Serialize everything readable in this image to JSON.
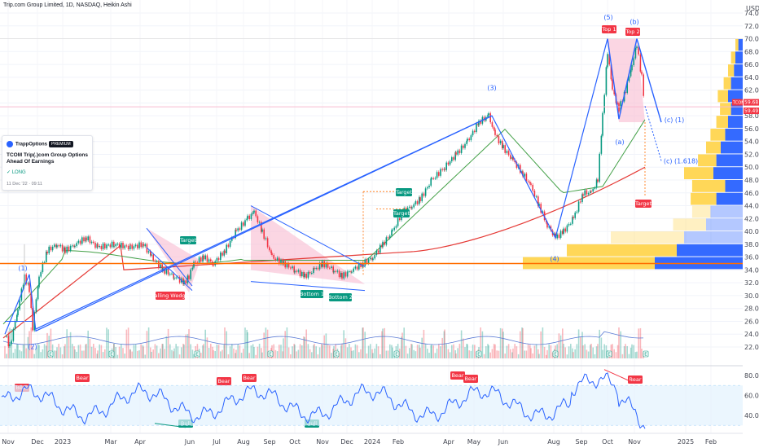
{
  "header": {
    "symbol_line": "Trip.com Group Limited, 1D, NASDAQ, Heikin Ashi"
  },
  "idea_card": {
    "brand": "TrappOptions",
    "badge": "PREMIUM",
    "title": "TCOM Trip(.)com Group Options Ahead Of Earnings",
    "direction": "LONG",
    "timestamp": "11 Dec '22 · 09:11"
  },
  "price_axis": {
    "currency": "USD",
    "ticks": [
      "74.00",
      "72.00",
      "70.00",
      "68.00",
      "66.00",
      "64.00",
      "62.00",
      "60.00",
      "58.00",
      "56.00",
      "54.00",
      "52.00",
      "50.00",
      "48.00",
      "46.00",
      "44.00",
      "42.00",
      "40.00",
      "38.00",
      "36.00",
      "34.00",
      "32.00",
      "30.00",
      "28.00",
      "26.00",
      "24.00",
      "22.00"
    ],
    "last_price_label": "TCOM",
    "last_price": "59.68",
    "second_price": "59.49"
  },
  "rsi_axis": {
    "ticks": [
      "80.00",
      "60.00",
      "40.00"
    ]
  },
  "time_axis": {
    "ticks": [
      "Nov",
      "Dec",
      "2023",
      "Mar",
      "Apr",
      "Jun",
      "Jul",
      "Aug",
      "Sep",
      "Oct",
      "Nov",
      "Dec",
      "2024",
      "Feb",
      "Apr",
      "May",
      "Jun",
      "Aug",
      "Sep",
      "Oct",
      "Nov",
      "2025",
      "Feb"
    ]
  },
  "annotations": {
    "wave_labels": [
      "(1)",
      "(2)",
      "(3)",
      "(4)",
      "(5)",
      "(b)",
      "(a)",
      "(c) (1)",
      "(c) (1.618)"
    ],
    "tags": {
      "top1": "Top 1",
      "top2": "Top 2",
      "target_main": "Target",
      "target_left": "Target",
      "target_mid1": "Target",
      "target_mid2": "Target",
      "falling_wedge": "Falling Wedge",
      "bottom1": "Bottom 1",
      "bottom2": "Bottom 2",
      "bull": "Bull",
      "bear": "Bear"
    },
    "earnings_marker": "E"
  },
  "colors": {
    "up": "#089981",
    "down": "#f23645",
    "trend": "#2962ff",
    "ma_long": "#e53935",
    "ma_mid": "#43a047",
    "rsi": "#2962ff",
    "rsi_band": "#e3f2fd",
    "vp_up": "#ffd54f",
    "vp_down": "#2962ff"
  },
  "chart_data": {
    "type": "candlestick",
    "title": "Trip.com Group Limited, 1D, NASDAQ, Heikin Ashi",
    "ylim": [
      21,
      75
    ],
    "price_path": {
      "x": [
        "Nov",
        "Dec",
        "2023",
        "Mar",
        "Apr",
        "Jun",
        "Jul",
        "Aug",
        "Sep",
        "Oct",
        "Nov",
        "Dec",
        "2024",
        "Feb",
        "Apr",
        "May",
        "Jun",
        "Aug",
        "Sep",
        "Oct",
        "Nov"
      ],
      "y": [
        24,
        33,
        37,
        38,
        35,
        33,
        36,
        43,
        37,
        33,
        34,
        33,
        36,
        44,
        52,
        57,
        50,
        38,
        46,
        69,
        58
      ]
    },
    "wave_points": {
      "labels": [
        "(1)",
        "(2)",
        "(3)",
        "(4)",
        "(5)",
        "(b)",
        "(c) (1)",
        "(c) (1.618)"
      ],
      "prices": [
        33.3,
        24.5,
        58.0,
        35.5,
        70.5,
        70.5,
        57.5,
        51.0
      ]
    },
    "volume_profile_levels": [
      34,
      36,
      38,
      40,
      42,
      44,
      46,
      48,
      50,
      52,
      54,
      56,
      58,
      60,
      62,
      64,
      66,
      68
    ],
    "rsi": {
      "ylim": [
        20,
        90
      ],
      "band": [
        30,
        70
      ]
    }
  }
}
